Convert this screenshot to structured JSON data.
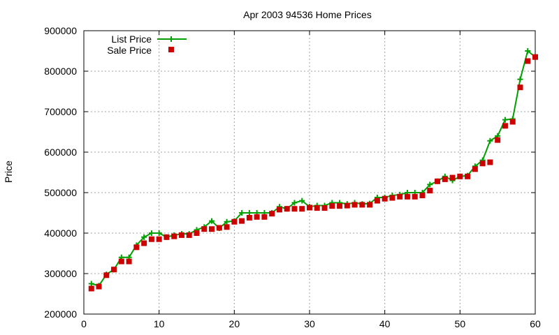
{
  "chart_data": {
    "type": "line",
    "title": "Apr 2003 94536 Home Prices",
    "xlabel": "",
    "ylabel": "Price",
    "xlim": [
      0,
      60
    ],
    "ylim": [
      200000,
      900000
    ],
    "xticks": [
      0,
      10,
      20,
      30,
      40,
      50,
      60
    ],
    "yticks": [
      200000,
      300000,
      400000,
      500000,
      600000,
      700000,
      800000,
      900000
    ],
    "grid": true,
    "legend_position": "top-left",
    "series": [
      {
        "name": "List Price",
        "style": "line-plus",
        "color": "#00a000",
        "x": [
          1,
          2,
          3,
          4,
          5,
          6,
          7,
          8,
          9,
          10,
          11,
          12,
          13,
          14,
          15,
          16,
          17,
          18,
          19,
          20,
          21,
          22,
          23,
          24,
          25,
          26,
          27,
          28,
          29,
          30,
          31,
          32,
          33,
          34,
          35,
          36,
          37,
          38,
          39,
          40,
          41,
          42,
          43,
          44,
          45,
          46,
          47,
          48,
          49,
          50,
          51,
          52,
          53,
          54,
          55,
          56,
          57,
          58,
          59,
          60
        ],
        "y": [
          275000,
          270000,
          298000,
          310000,
          340000,
          340000,
          370000,
          390000,
          400000,
          400000,
          390000,
          395000,
          398000,
          398000,
          408000,
          415000,
          430000,
          412000,
          428000,
          430000,
          450000,
          450000,
          450000,
          450000,
          450000,
          465000,
          460000,
          475000,
          480000,
          465000,
          468000,
          468000,
          475000,
          475000,
          472000,
          475000,
          472000,
          473000,
          488000,
          488000,
          493000,
          495000,
          500000,
          500000,
          500000,
          520000,
          528000,
          540000,
          530000,
          540000,
          542000,
          565000,
          580000,
          628000,
          640000,
          680000,
          682000,
          780000,
          850000,
          835000
        ]
      },
      {
        "name": "Sale Price",
        "style": "square",
        "color": "#cc0000",
        "x": [
          1,
          2,
          3,
          4,
          5,
          6,
          7,
          8,
          9,
          10,
          11,
          12,
          13,
          14,
          15,
          16,
          17,
          18,
          19,
          20,
          21,
          22,
          23,
          24,
          25,
          26,
          27,
          28,
          29,
          30,
          31,
          32,
          33,
          34,
          35,
          36,
          37,
          38,
          39,
          40,
          41,
          42,
          43,
          44,
          45,
          46,
          47,
          48,
          49,
          50,
          51,
          52,
          53,
          54,
          55,
          56,
          57,
          58,
          59,
          60
        ],
        "y": [
          263000,
          268000,
          296000,
          310000,
          330000,
          330000,
          365000,
          375000,
          385000,
          385000,
          390000,
          392000,
          395000,
          395000,
          400000,
          410000,
          410000,
          413000,
          415000,
          428000,
          430000,
          438000,
          440000,
          440000,
          448000,
          458000,
          460000,
          460000,
          460000,
          463000,
          462000,
          462000,
          467000,
          467000,
          468000,
          470000,
          470000,
          470000,
          480000,
          485000,
          487000,
          490000,
          490000,
          490000,
          493000,
          505000,
          528000,
          533000,
          537000,
          540000,
          540000,
          558000,
          572000,
          575000,
          630000,
          665000,
          675000,
          760000,
          825000,
          835000
        ]
      }
    ]
  }
}
